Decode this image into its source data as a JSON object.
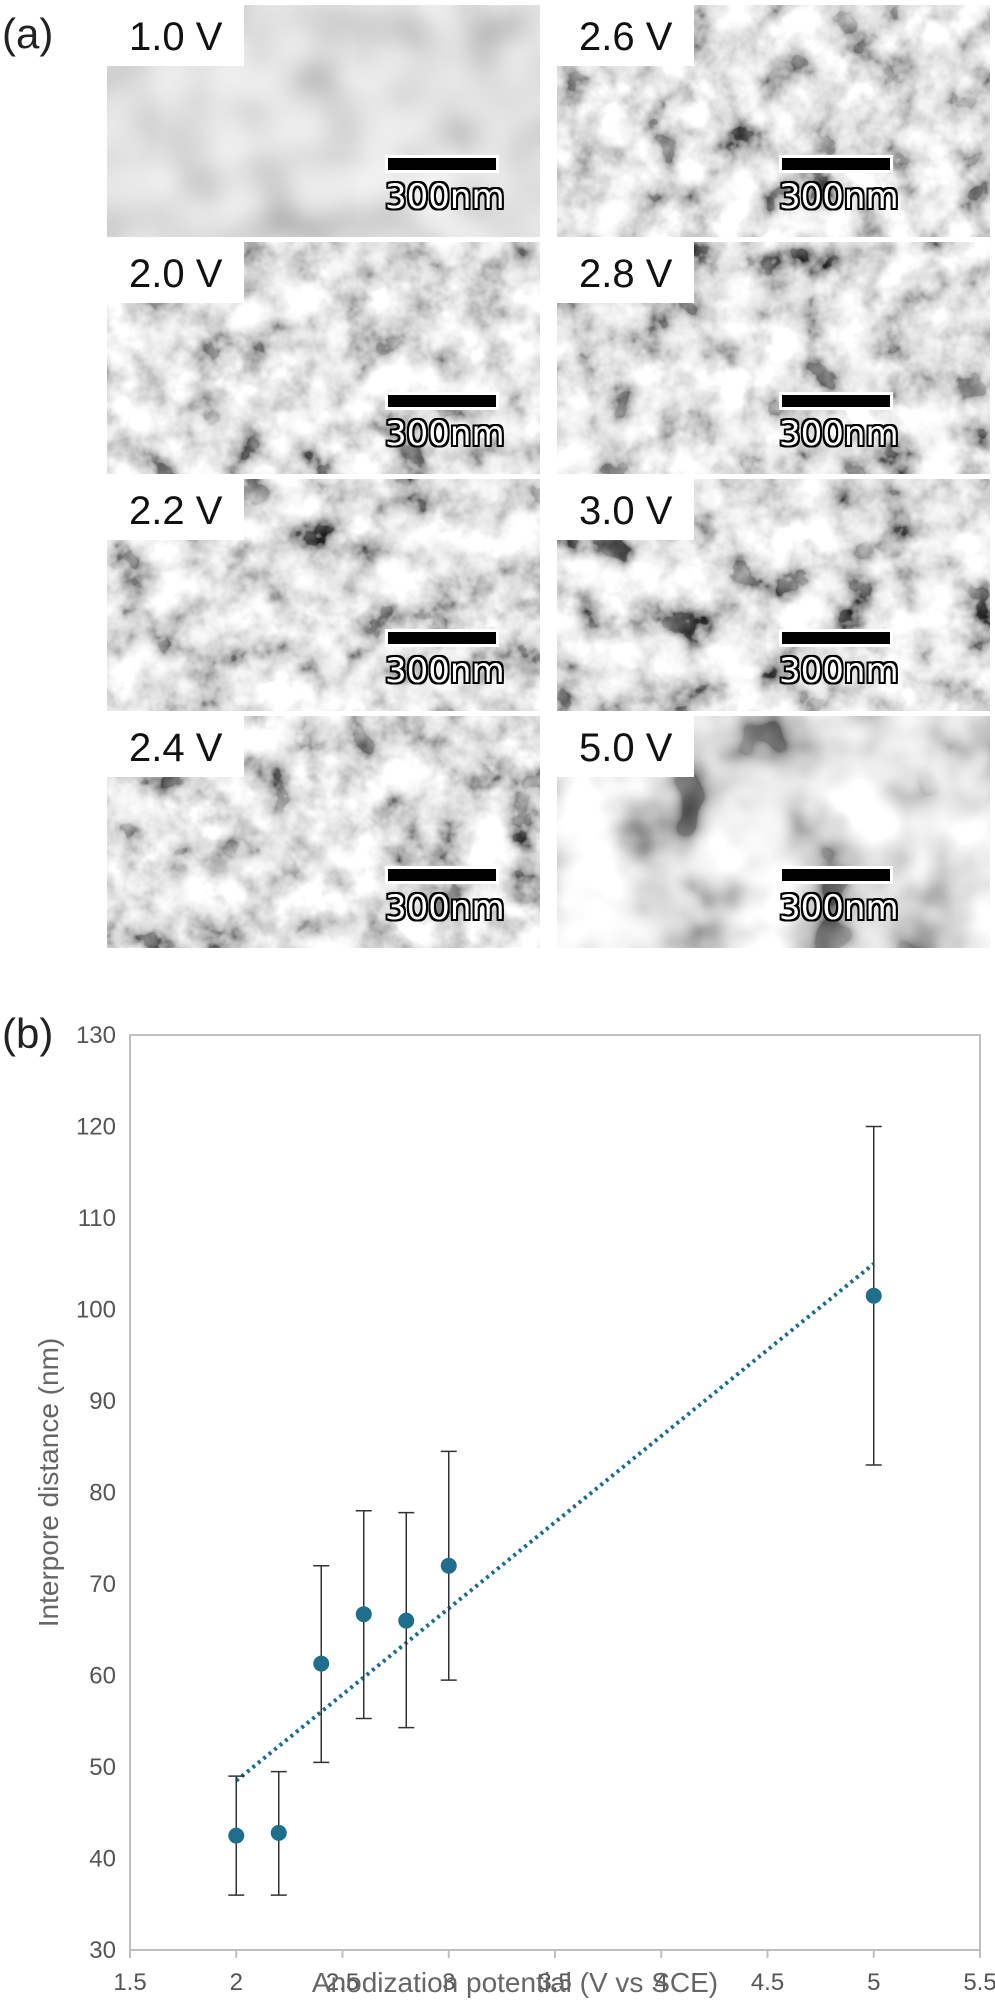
{
  "figure": {
    "panel_a_label": "(a)",
    "panel_b_label": "(b)",
    "micrographs": [
      {
        "voltage": "1.0 V",
        "scale": "300nm",
        "texture": "smooth"
      },
      {
        "voltage": "2.6 V",
        "scale": "300nm",
        "texture": "pores"
      },
      {
        "voltage": "2.0 V",
        "scale": "300nm",
        "texture": "pores"
      },
      {
        "voltage": "2.8 V",
        "scale": "300nm",
        "texture": "pores"
      },
      {
        "voltage": "2.2 V",
        "scale": "300nm",
        "texture": "pores"
      },
      {
        "voltage": "3.0 V",
        "scale": "300nm",
        "texture": "pores"
      },
      {
        "voltage": "2.4 V",
        "scale": "300nm",
        "texture": "pores"
      },
      {
        "voltage": "5.0 V",
        "scale": "300nm",
        "texture": "coarse"
      }
    ]
  },
  "chart_data": {
    "type": "scatter",
    "xlabel": "Anodization potential (V vs SCE)",
    "ylabel": "Interpore distance (nm)",
    "xlim": [
      1.5,
      5.5
    ],
    "ylim": [
      30,
      130
    ],
    "xticks": [
      "1.5",
      "2",
      "2.5",
      "3",
      "3.5",
      "4",
      "4.5",
      "5",
      "5.5"
    ],
    "yticks": [
      "30",
      "40",
      "50",
      "60",
      "70",
      "80",
      "90",
      "100",
      "110",
      "120",
      "130"
    ],
    "marker_color": "#1f6e8c",
    "points": [
      {
        "x": 2.0,
        "y": 42.5,
        "err_low": 36,
        "err_high": 49
      },
      {
        "x": 2.2,
        "y": 42.8,
        "err_low": 36,
        "err_high": 49.5
      },
      {
        "x": 2.4,
        "y": 61.3,
        "err_low": 50.5,
        "err_high": 72
      },
      {
        "x": 2.6,
        "y": 66.7,
        "err_low": 55.3,
        "err_high": 78
      },
      {
        "x": 2.8,
        "y": 66,
        "err_low": 54.3,
        "err_high": 77.8
      },
      {
        "x": 3.0,
        "y": 72,
        "err_low": 59.5,
        "err_high": 84.5
      },
      {
        "x": 5.0,
        "y": 101.5,
        "err_low": 83,
        "err_high": 120
      }
    ],
    "trendline": {
      "style": "dotted",
      "x": [
        2.0,
        5.0
      ],
      "y": [
        48.5,
        105
      ]
    }
  }
}
